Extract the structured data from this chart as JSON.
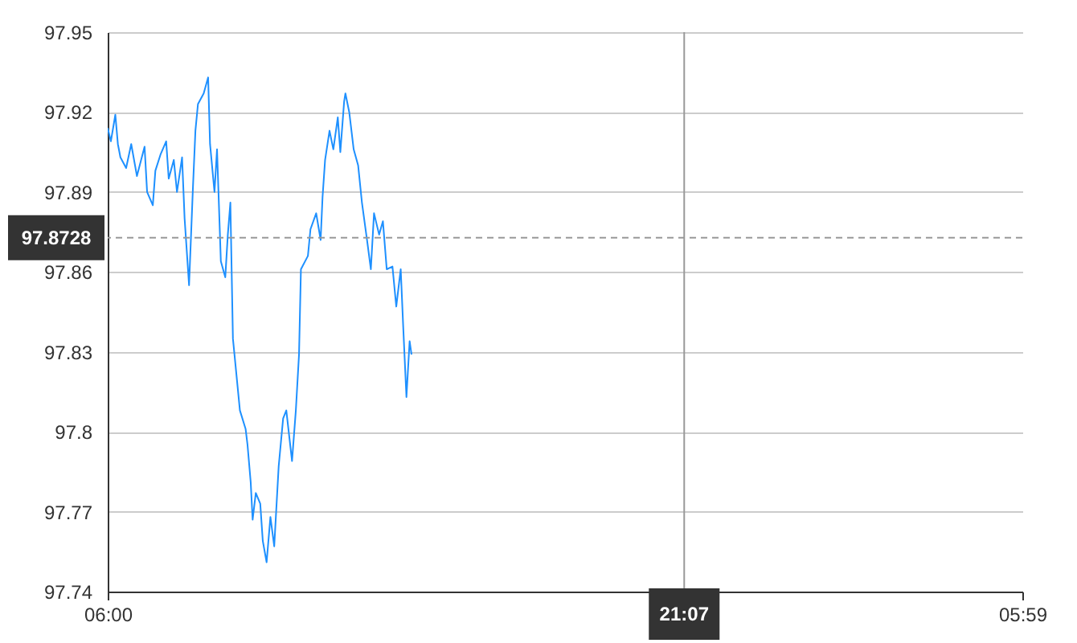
{
  "chart_data": {
    "type": "line",
    "color": "#1e90ff",
    "line_style": "solid",
    "grid": "y",
    "xlim": [
      "2000-01-01T06:00",
      "2000-01-02T05:59"
    ],
    "xticks": [
      {
        "value": "2000-01-01T06:00",
        "label": "06:00"
      },
      {
        "value": "2000-01-02T05:59",
        "label": "05:59"
      }
    ],
    "ylim": [
      97.74,
      97.95
    ],
    "yticks": [
      97.74,
      97.77,
      97.8,
      97.83,
      97.86,
      97.89,
      97.92,
      97.95
    ],
    "x": [
      "2000-01-01T06:00",
      "2000-01-01T06:05",
      "2000-01-01T06:12",
      "2000-01-01T06:16",
      "2000-01-01T06:20",
      "2000-01-01T06:29",
      "2000-01-01T06:37",
      "2000-01-01T06:46",
      "2000-01-01T06:58",
      "2000-01-01T07:02",
      "2000-01-01T07:11",
      "2000-01-01T07:15",
      "2000-01-01T07:23",
      "2000-01-01T07:32",
      "2000-01-01T07:36",
      "2000-01-01T07:44",
      "2000-01-01T07:49",
      "2000-01-01T07:57",
      "2000-01-01T08:01",
      "2000-01-01T08:08",
      "2000-01-01T08:14",
      "2000-01-01T08:18",
      "2000-01-01T08:22",
      "2000-01-01T08:31",
      "2000-01-01T08:38",
      "2000-01-01T08:41",
      "2000-01-01T08:48",
      "2000-01-01T08:52",
      "2000-01-01T08:58",
      "2000-01-01T09:05",
      "2000-01-01T09:09",
      "2000-01-01T09:13",
      "2000-01-01T09:17",
      "2000-01-01T09:28",
      "2000-01-01T09:37",
      "2000-01-01T09:40",
      "2000-01-01T09:45",
      "2000-01-01T09:48",
      "2000-01-01T09:53",
      "2000-01-01T10:00",
      "2000-01-01T10:04",
      "2000-01-01T10:10",
      "2000-01-01T10:16",
      "2000-01-01T10:22",
      "2000-01-01T10:29",
      "2000-01-01T10:36",
      "2000-01-01T10:41",
      "2000-01-01T10:50",
      "2000-01-01T10:56",
      "2000-01-01T11:01",
      "2000-01-01T11:04",
      "2000-01-01T11:15",
      "2000-01-01T11:19",
      "2000-01-01T11:28",
      "2000-01-01T11:35",
      "2000-01-01T11:38",
      "2000-01-01T11:42",
      "2000-01-01T11:49",
      "2000-01-01T11:55",
      "2000-01-01T12:02",
      "2000-01-01T12:06",
      "2000-01-01T12:12",
      "2000-01-01T12:14",
      "2000-01-01T12:20",
      "2000-01-01T12:27",
      "2000-01-01T12:34",
      "2000-01-01T12:40",
      "2000-01-01T12:48",
      "2000-01-01T12:54",
      "2000-01-01T12:59",
      "2000-01-01T13:07",
      "2000-01-01T13:13",
      "2000-01-01T13:19",
      "2000-01-01T13:28",
      "2000-01-01T13:34",
      "2000-01-01T13:41",
      "2000-01-01T13:45",
      "2000-01-01T13:50",
      "2000-01-01T13:55",
      "2000-01-01T13:58"
    ],
    "values": [
      97.914,
      97.909,
      97.919,
      97.908,
      97.903,
      97.899,
      97.908,
      97.896,
      97.907,
      97.89,
      97.885,
      97.898,
      97.904,
      97.909,
      97.895,
      97.902,
      97.89,
      97.903,
      97.88,
      97.855,
      97.891,
      97.913,
      97.923,
      97.927,
      97.933,
      97.908,
      97.89,
      97.906,
      97.864,
      97.858,
      97.874,
      97.886,
      97.835,
      97.808,
      97.801,
      97.795,
      97.781,
      97.767,
      97.777,
      97.773,
      97.759,
      97.751,
      97.768,
      97.757,
      97.787,
      97.805,
      97.808,
      97.789,
      97.808,
      97.829,
      97.861,
      97.866,
      97.876,
      97.882,
      97.872,
      97.888,
      97.902,
      97.913,
      97.906,
      97.918,
      97.905,
      97.924,
      97.927,
      97.92,
      97.906,
      97.9,
      97.886,
      97.872,
      97.861,
      97.882,
      97.874,
      97.879,
      97.861,
      97.862,
      97.847,
      97.861,
      97.839,
      97.813,
      97.834,
      97.829
    ],
    "ref_lines": [
      {
        "axis": "y",
        "value": 97.8728,
        "label": "97.8728",
        "color": "#999999",
        "line_style": "dashed"
      },
      {
        "axis": "x",
        "value": "2000-01-01T21:07",
        "label": "21:07",
        "color": "#999999",
        "line_style": "solid"
      }
    ]
  }
}
